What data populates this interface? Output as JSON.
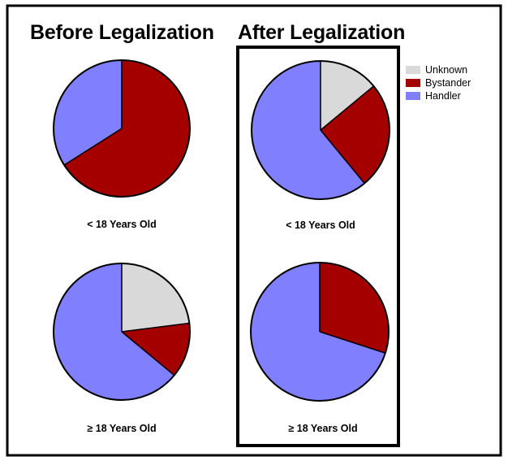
{
  "titles": {
    "before": "Before Legalization",
    "after": "After Legalization"
  },
  "legend": [
    {
      "label": "Unknown",
      "color": "#d9d9d9"
    },
    {
      "label": "Bystander",
      "color": "#a50000"
    },
    {
      "label": "Handler",
      "color": "#8080ff"
    }
  ],
  "chart_data": [
    {
      "type": "pie",
      "group": "Before Legalization",
      "label": "< 18 Years Old",
      "slices": [
        {
          "name": "Unknown",
          "value": 0,
          "color": "#d9d9d9"
        },
        {
          "name": "Bystander",
          "value": 66,
          "color": "#a50000"
        },
        {
          "name": "Handler",
          "value": 34,
          "color": "#8080ff"
        }
      ]
    },
    {
      "type": "pie",
      "group": "Before Legalization",
      "label": "≥ 18 Years Old",
      "slices": [
        {
          "name": "Unknown",
          "value": 23,
          "color": "#d9d9d9"
        },
        {
          "name": "Bystander",
          "value": 13,
          "color": "#a50000"
        },
        {
          "name": "Handler",
          "value": 64,
          "color": "#8080ff"
        }
      ]
    },
    {
      "type": "pie",
      "group": "After Legalization",
      "label": "< 18 Years Old",
      "slices": [
        {
          "name": "Unknown",
          "value": 14,
          "color": "#d9d9d9"
        },
        {
          "name": "Bystander",
          "value": 25,
          "color": "#a50000"
        },
        {
          "name": "Handler",
          "value": 61,
          "color": "#8080ff"
        }
      ]
    },
    {
      "type": "pie",
      "group": "After Legalization",
      "label": "≥ 18 Years Old",
      "slices": [
        {
          "name": "Unknown",
          "value": 0,
          "color": "#d9d9d9"
        },
        {
          "name": "Bystander",
          "value": 30,
          "color": "#a50000"
        },
        {
          "name": "Handler",
          "value": 70,
          "color": "#8080ff"
        }
      ]
    }
  ]
}
